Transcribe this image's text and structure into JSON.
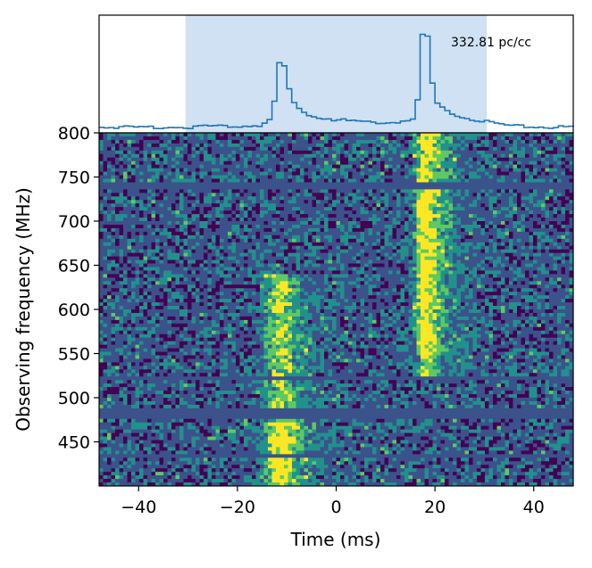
{
  "chart_data": [
    {
      "type": "line",
      "panel": "pulse-profile",
      "annotation": "332.81 pc/cc",
      "highlight_range_ms": [
        -30.5,
        30.5
      ],
      "highlight_color": "#cfe1f3",
      "line_color": "#1f77b4",
      "profile": [
        {
          "x": -50,
          "y": 0.03
        },
        {
          "x": -40,
          "y": 0.03
        },
        {
          "x": -30,
          "y": 0.03
        },
        {
          "x": -20,
          "y": 0.04
        },
        {
          "x": -16,
          "y": 0.05
        },
        {
          "x": -14,
          "y": 0.1
        },
        {
          "x": -13,
          "y": 0.28
        },
        {
          "x": -12,
          "y": 0.64
        },
        {
          "x": -11,
          "y": 0.62
        },
        {
          "x": -10,
          "y": 0.4
        },
        {
          "x": -9,
          "y": 0.26
        },
        {
          "x": -8,
          "y": 0.2
        },
        {
          "x": -6,
          "y": 0.15
        },
        {
          "x": -4,
          "y": 0.12
        },
        {
          "x": 0,
          "y": 0.1
        },
        {
          "x": 5,
          "y": 0.08
        },
        {
          "x": 10,
          "y": 0.07
        },
        {
          "x": 15,
          "y": 0.1
        },
        {
          "x": 16,
          "y": 0.28
        },
        {
          "x": 17,
          "y": 0.92
        },
        {
          "x": 18,
          "y": 0.9
        },
        {
          "x": 19,
          "y": 0.45
        },
        {
          "x": 20,
          "y": 0.25
        },
        {
          "x": 22,
          "y": 0.18
        },
        {
          "x": 25,
          "y": 0.13
        },
        {
          "x": 30,
          "y": 0.08
        },
        {
          "x": 35,
          "y": 0.04
        },
        {
          "x": 40,
          "y": 0.03
        },
        {
          "x": 48,
          "y": 0.03
        }
      ]
    },
    {
      "type": "heatmap",
      "panel": "dynamic-spectrum",
      "xlabel": "Time (ms)",
      "ylabel": "Observing frequency (MHz)",
      "xlim": [
        -48,
        48
      ],
      "ylim": [
        400,
        800
      ],
      "x_ticks": [
        "−40",
        "−20",
        "0",
        "20",
        "40"
      ],
      "y_ticks": [
        "800",
        "750",
        "700",
        "650",
        "600",
        "550",
        "500",
        "450"
      ],
      "colormap": [
        "#440154",
        "#3b528b",
        "#21918c",
        "#5ec962",
        "#fde725"
      ],
      "masked_bands_mhz": [
        [
          737,
          745
        ],
        [
          520,
          524
        ],
        [
          478,
          487
        ],
        [
          432,
          436
        ]
      ],
      "bursts": [
        {
          "time_ms": -11.0,
          "freq_min_mhz": 400,
          "freq_max_mhz": 640,
          "brightest_mhz": [
            400,
            470
          ]
        },
        {
          "time_ms": 18.0,
          "freq_min_mhz": 520,
          "freq_max_mhz": 800,
          "brightest_mhz": [
            550,
            800
          ]
        }
      ]
    }
  ]
}
